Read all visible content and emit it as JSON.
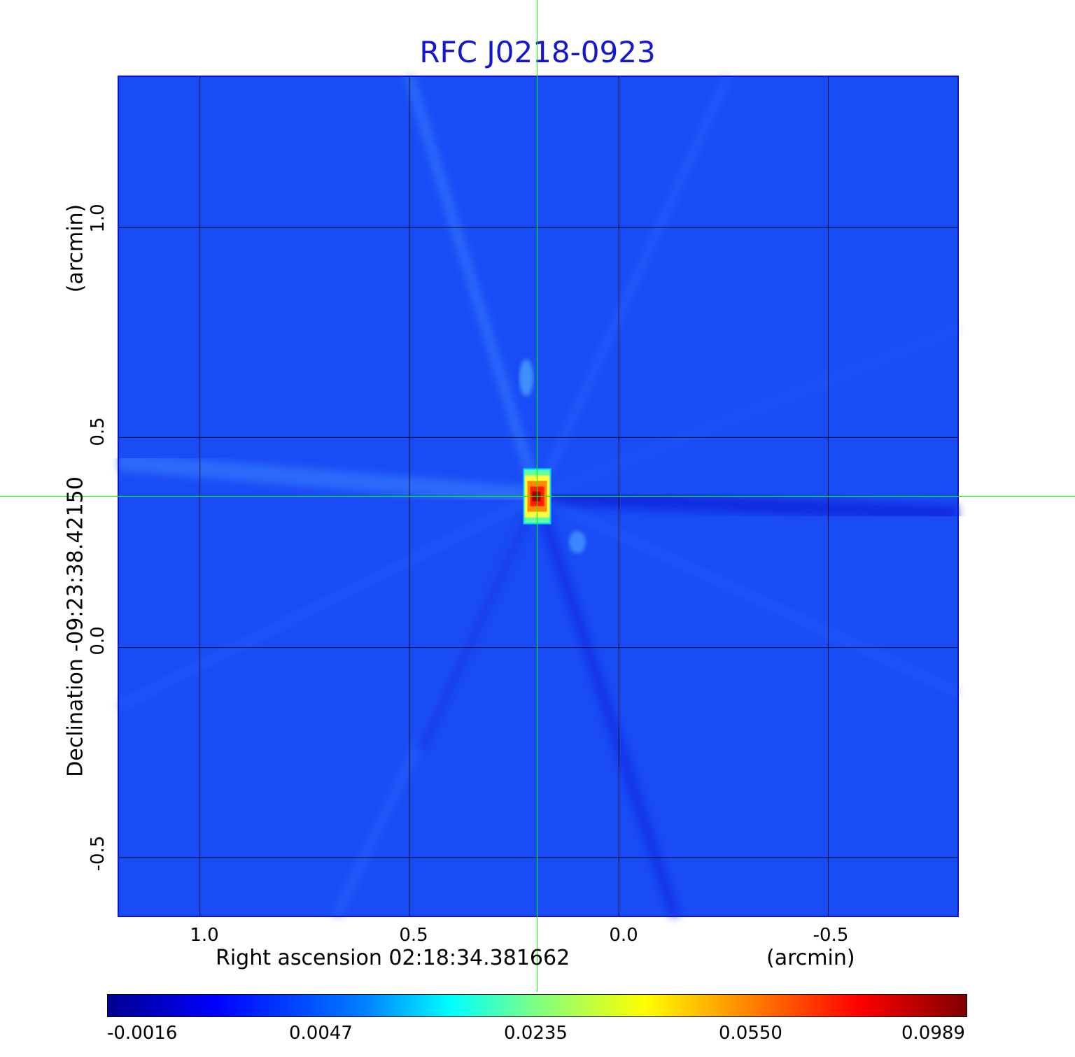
{
  "chart_data": {
    "type": "heatmap",
    "title": "RFC J0218-0923",
    "xlabel": "Right ascension  02:18:34.381662",
    "x_unit": "(arcmin)",
    "ylabel": "Declination  -09:23:38.42150",
    "y_unit": "(arcmin)",
    "x_ticks": [
      "1.0",
      "0.5",
      "0.0",
      "-0.5"
    ],
    "y_ticks": [
      "1.0",
      "0.5",
      "0.0",
      "-0.5"
    ],
    "xlim": [
      1.195,
      -0.81
    ],
    "ylim": [
      -0.64,
      1.36
    ],
    "grid": true,
    "crosshair": {
      "x": 0.195,
      "y": 0.36
    },
    "peak": {
      "x": 0.195,
      "y": 0.36,
      "value": 0.0989
    },
    "colorbar": {
      "ticks": [
        "-0.0016",
        "0.0047",
        "0.0235",
        "0.0550",
        "0.0989"
      ],
      "range": [
        -0.0016,
        0.0989
      ],
      "colormap": "jet"
    }
  },
  "colors": {
    "title": "#1515d4",
    "background_field": "#1a4cf5",
    "crosshair": "#00ff00",
    "grid": "#000000"
  }
}
